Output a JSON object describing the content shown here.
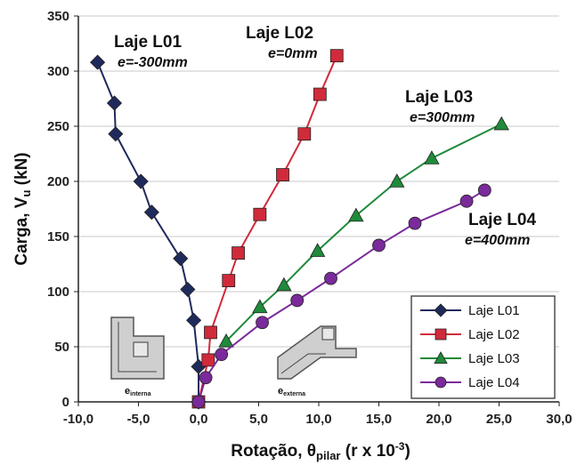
{
  "chart_data": {
    "type": "line",
    "xlabel_main": "Rotação, θ",
    "xlabel_sub": "pilar",
    "xlabel_tail": " (r x 10",
    "xlabel_sup": "-3",
    "xlabel_end": ")",
    "ylabel_main": "Carga, V",
    "ylabel_sub": "u",
    "ylabel_tail": " (kN)",
    "xlim": [
      -10,
      30
    ],
    "ylim": [
      0,
      350
    ],
    "x_ticks": [
      "-10,0",
      "-5,0",
      "0,0",
      "5,0",
      "10,0",
      "15,0",
      "20,0",
      "25,0",
      "30,0"
    ],
    "x_tick_values": [
      -10,
      -5,
      0,
      5,
      10,
      15,
      20,
      25,
      30
    ],
    "y_ticks": [
      "0",
      "50",
      "100",
      "150",
      "200",
      "250",
      "300",
      "350"
    ],
    "y_tick_values": [
      0,
      50,
      100,
      150,
      200,
      250,
      300,
      350
    ],
    "grid": "horizontal",
    "legend_position": "bottom-right",
    "series": [
      {
        "name": "Laje L01",
        "color": "#1f2a5c",
        "marker": "diamond",
        "x": [
          0.0,
          0.0,
          -0.4,
          -0.9,
          -1.5,
          -3.9,
          -4.8,
          -6.9,
          -7.0,
          -8.4
        ],
        "y": [
          0,
          32,
          74,
          102,
          130,
          172,
          200,
          243,
          271,
          308
        ]
      },
      {
        "name": "Laje L02",
        "color": "#d12a3a",
        "marker": "square",
        "x": [
          0.0,
          0.8,
          1.0,
          2.5,
          3.3,
          5.1,
          7.0,
          8.8,
          10.1,
          11.5
        ],
        "y": [
          0,
          38,
          63,
          110,
          135,
          170,
          206,
          243,
          279,
          314
        ]
      },
      {
        "name": "Laje L03",
        "color": "#1f8a3a",
        "marker": "triangle",
        "x": [
          2.3,
          5.1,
          7.1,
          9.9,
          13.1,
          16.5,
          19.4,
          25.2
        ],
        "y": [
          55,
          86,
          106,
          137,
          169,
          200,
          221,
          252
        ]
      },
      {
        "name": "Laje L04",
        "color": "#7a2a9a",
        "marker": "circle",
        "x": [
          0.0,
          0.6,
          1.9,
          5.3,
          8.2,
          11.0,
          15.0,
          18.0,
          22.3,
          23.8
        ],
        "y": [
          0,
          22,
          43,
          72,
          92,
          112,
          142,
          162,
          182,
          192
        ]
      }
    ],
    "annotations": [
      {
        "title": "Laje L01",
        "subtitle": "e=-300mm"
      },
      {
        "title": "Laje L02",
        "subtitle": "e=0mm"
      },
      {
        "title": "Laje L03",
        "subtitle": "e=300mm"
      },
      {
        "title": "Laje L04",
        "subtitle": "e=400mm"
      }
    ],
    "insets": [
      {
        "label": "e",
        "sub": "interna"
      },
      {
        "label": "e",
        "sub": "externa"
      }
    ]
  }
}
